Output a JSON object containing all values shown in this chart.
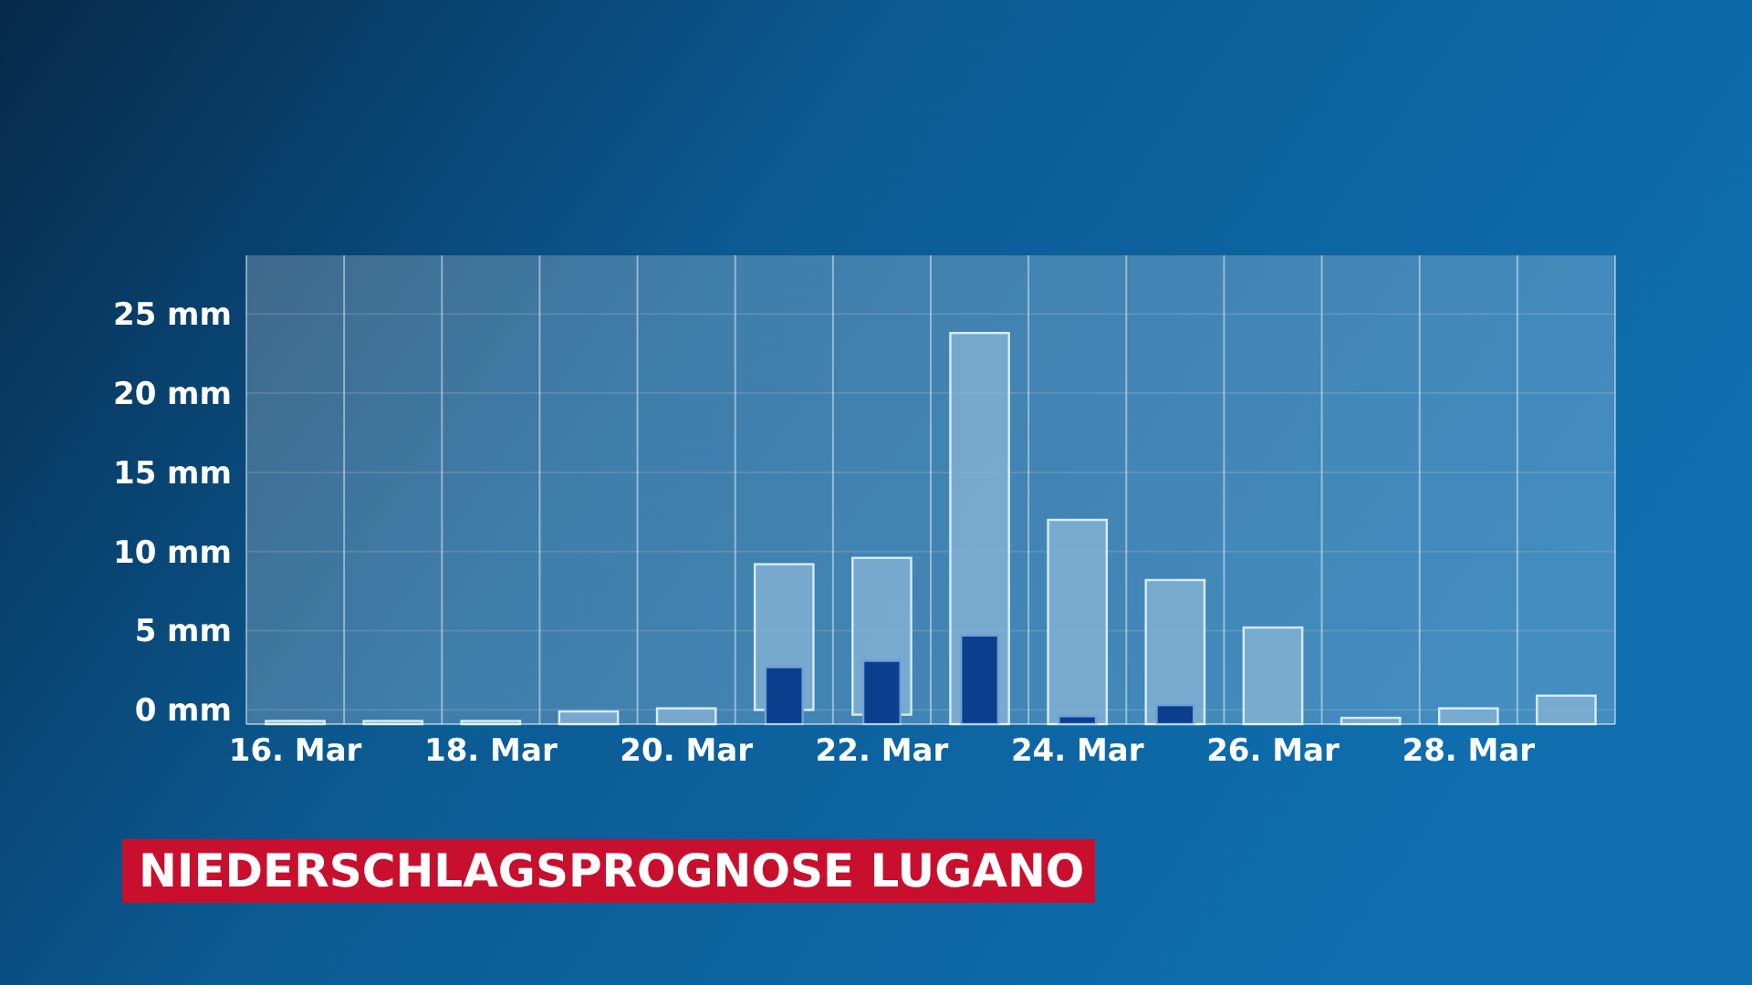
{
  "chart_data": {
    "type": "bar",
    "title": "NIEDERSCHLAGSPROGNOSE LUGANO",
    "categories": [
      "16. Mar",
      null,
      "18. Mar",
      null,
      "20. Mar",
      null,
      "22. Mar",
      null,
      "24. Mar",
      null,
      "26. Mar",
      null,
      "28. Mar",
      null
    ],
    "series": [
      {
        "color": "#80b0d2",
        "base": [
          -0.9,
          -0.9,
          -0.9,
          -0.9,
          -0.9,
          0,
          -0.3,
          -0.9,
          -0.9,
          -0.9,
          -0.9,
          -0.9,
          -0.9,
          -0.9
        ],
        "values": [
          0.2,
          0.2,
          0.2,
          0.8,
          1.0,
          9.2,
          9.9,
          24.7,
          12.9,
          9.1,
          6.1,
          0.4,
          1.0,
          1.8
        ]
      },
      {
        "color": "#0d3f8f",
        "base": [
          null,
          null,
          null,
          null,
          null,
          -0.9,
          -0.9,
          -0.9,
          -0.9,
          -0.9,
          null,
          null,
          null,
          null
        ],
        "values": [
          null,
          null,
          null,
          null,
          null,
          3.6,
          4.0,
          5.6,
          0.5,
          1.2,
          null,
          null,
          null,
          null
        ]
      }
    ],
    "ylim": [
      -0.9,
      28.7
    ],
    "yticks": [
      {
        "value": 0,
        "label": "0 mm"
      },
      {
        "value": 5,
        "label": "5 mm"
      },
      {
        "value": 10,
        "label": "10 mm"
      },
      {
        "value": 15,
        "label": "15 mm"
      },
      {
        "value": 20,
        "label": "20 mm"
      },
      {
        "value": 25,
        "label": "25 mm"
      }
    ],
    "grid": true
  }
}
